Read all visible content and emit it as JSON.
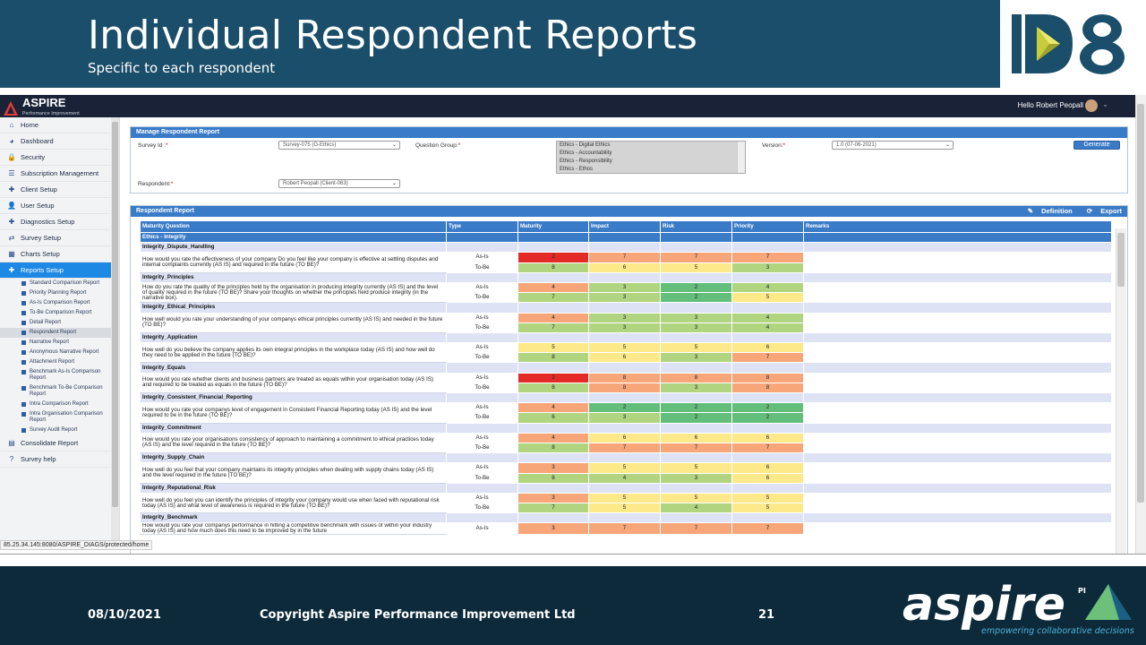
{
  "slide": {
    "title": "Individual Respondent Reports",
    "subtitle": "Specific to each respondent",
    "logo_text": "ID8",
    "footer_date": "08/10/2021",
    "footer_copyright": "Copyright Aspire Performance Improvement Ltd",
    "footer_page": "21",
    "aspire_logo_text": "aspire",
    "aspire_logo_pi": "PI",
    "aspire_tagline": "empowering collaborative decisions"
  },
  "app": {
    "brand": "ASPIRE",
    "brand_sub": "Performance Improvement",
    "greeting": "Hello Robert Peopall",
    "status_url": "85.25.34.145:8080/ASPIRE_DIAGS/protected/home"
  },
  "sidebar": {
    "items": [
      {
        "icon": "home-icon",
        "glyph": "⌂",
        "label": "Home"
      },
      {
        "icon": "dashboard-icon",
        "glyph": "◕",
        "label": "Dashboard"
      },
      {
        "icon": "lock-icon",
        "glyph": "🔒",
        "label": "Security"
      },
      {
        "icon": "list-icon",
        "glyph": "☰",
        "label": "Subscription Management"
      },
      {
        "icon": "plus-icon",
        "glyph": "✚",
        "label": "Client Setup"
      },
      {
        "icon": "user-icon",
        "glyph": "👤",
        "label": "User Setup"
      },
      {
        "icon": "plus-icon",
        "glyph": "✚",
        "label": "Diagnostics Setup"
      },
      {
        "icon": "swap-icon",
        "glyph": "⇄",
        "label": "Survey Setup"
      },
      {
        "icon": "chart-icon",
        "glyph": "▦",
        "label": "Charts Setup"
      },
      {
        "icon": "plus-icon",
        "glyph": "✚",
        "label": "Reports Setup"
      }
    ],
    "reports_sub": [
      "Standard Comparison Report",
      "Priority Planning Report",
      "As-Is Comparison Report",
      "To-Be Comparison Report",
      "Detail Report",
      "Respondent Report",
      "Narrative Report",
      "Anonymous Narrative Report",
      "Attachment Report",
      "Benchmark As-Is Comparison Report",
      "Benchmark To-Be Comparison Report",
      "Intra Comparison Report",
      "Intra Organisation Comparison Report",
      "Survey Audit Report"
    ],
    "bottom_items": [
      {
        "icon": "report-icon",
        "glyph": "▤",
        "label": "Consolidate Report"
      },
      {
        "icon": "help-icon",
        "glyph": "?",
        "label": "Survey help"
      }
    ]
  },
  "manage": {
    "title": "Manage Respondent Report",
    "survey_label": "Survey Id :",
    "survey_value": "Survey-075 (G-Ethics)",
    "qgroup_label": "Question Group:",
    "qgroup_options": [
      "Ethics - Digital Ethics",
      "Ethics - Accountability",
      "Ethics - Responsibility",
      "Ethics - Ethos"
    ],
    "version_label": "Version:",
    "version_value": "1.0 (07-06-2021)",
    "generate": "Generate",
    "respondent_label": "Respondent:",
    "respondent_value": "Robert Peopall (Client-063)"
  },
  "report": {
    "title": "Respondent Report",
    "definition": "Definition",
    "export": "Export",
    "columns": [
      "Maturity Question",
      "Type",
      "Maturity",
      "Impact",
      "Risk",
      "Priority",
      "Remarks"
    ],
    "category": "Ethics - Integrity",
    "groups": [
      {
        "name": "Integrity_Dispute_Handling",
        "question": "How would you rate the effectiveness of your company Do you feel like your company is effective at settling disputes and internal complaints currently (AS IS) and required in the future (TO BE)?",
        "asis": [
          2,
          7,
          7,
          7
        ],
        "tobe": [
          8,
          6,
          5,
          3
        ]
      },
      {
        "name": "Integrity_Principles",
        "question": "How do you rate the quality of the principles held by the organisation in producing integrity currently (AS IS) and the level of quality required in the future (TO BE)? Share your thoughts on whether the principles held produce integrity (in the narrative box).",
        "asis": [
          4,
          3,
          2,
          4
        ],
        "tobe": [
          7,
          3,
          2,
          5
        ]
      },
      {
        "name": "Integrity_Ethical_Principles",
        "question": "How well would you rate your understanding of your companys ethical principles currently (AS IS) and needed in the future (TO BE)?",
        "asis": [
          4,
          3,
          3,
          4
        ],
        "tobe": [
          7,
          3,
          3,
          4
        ]
      },
      {
        "name": "Integrity_Application",
        "question": "How well do you believe the company applies its own integral principles in the workplace today (AS IS) and how well do they need to be applied in the future (TO BE)?",
        "asis": [
          5,
          5,
          5,
          6
        ],
        "tobe": [
          8,
          6,
          3,
          7
        ]
      },
      {
        "name": "Integrity_Equals",
        "question": "How would you rate whether clients and business partners are treated as equals within your organisation today (AS IS) and required to be treated as equals in the future (TO BE)?",
        "asis": [
          2,
          8,
          8,
          8
        ],
        "tobe": [
          8,
          8,
          3,
          8
        ]
      },
      {
        "name": "Integrity_Consistent_Financial_Reporting",
        "question": "How would you rate your companys level of engagement in Consistent Financial Reporting today (AS IS) and the level required to be in the future (TO BE)?",
        "asis": [
          4,
          2,
          2,
          2
        ],
        "tobe": [
          6,
          3,
          2,
          2
        ]
      },
      {
        "name": "Integrity_Commitment",
        "question": "How would you rate your organisations consistency of approach to maintaining a commitment to ethical practices today (AS IS) and the level required in the future (TO BE)?",
        "asis": [
          4,
          6,
          6,
          6
        ],
        "tobe": [
          8,
          7,
          7,
          7
        ]
      },
      {
        "name": "Integrity_Supply_Chain",
        "question": "How well do you feel that your company maintains its integrity principles when dealing with supply chains today (AS IS) and the level required in the future (TO BE)?",
        "asis": [
          3,
          5,
          5,
          6
        ],
        "tobe": [
          8,
          4,
          3,
          6
        ]
      },
      {
        "name": "Integrity_Reputational_Risk",
        "question": "How well do you feel you can identify the principles of integrity your company would use when faced with reputational risk today (AS IS) and what level of awareness is required in the future (TO BE)?",
        "asis": [
          3,
          5,
          5,
          5
        ],
        "tobe": [
          7,
          5,
          4,
          5
        ]
      },
      {
        "name": "Integrity_Benchmark",
        "question": "How would you rate your companys performance in hitting a competitive benchmark with issues of within your industry today (AS IS) and how much does this need to be improved by in the future",
        "asis": [
          3,
          7,
          7,
          7
        ],
        "tobe": null
      }
    ],
    "type_asis": "As-Is",
    "type_tobe": "To-Be"
  },
  "colors": {
    "header_bg": "#1b4e6a",
    "footer_bg": "#0d2a3b",
    "accent": "#3a7bc8",
    "score_red": "#e32a27",
    "score_orange": "#f7a679",
    "score_yellow": "#fde989",
    "score_lightgreen": "#b0d47f",
    "score_green": "#63be7b"
  }
}
